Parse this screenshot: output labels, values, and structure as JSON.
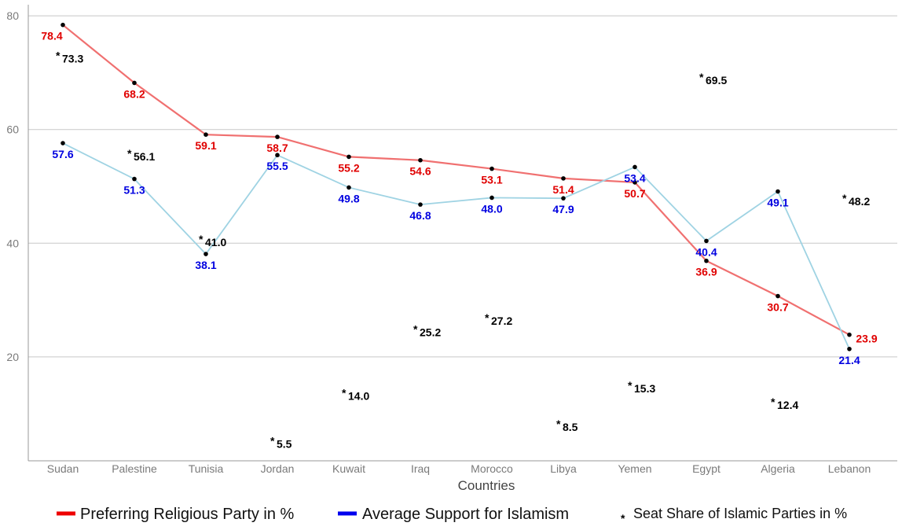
{
  "chart_data": {
    "type": "line",
    "xlabel": "Countries",
    "ylabel": "",
    "ylim": [
      0,
      80
    ],
    "yticks": [
      20,
      40,
      60,
      80
    ],
    "grid": "horizontal",
    "legend_position": "bottom",
    "categories": [
      "Sudan",
      "Palestine",
      "Tunisia",
      "Jordan",
      "Kuwait",
      "Iraq",
      "Morocco",
      "Libya",
      "Yemen",
      "Egypt",
      "Algeria",
      "Lebanon"
    ],
    "series": [
      {
        "name": "Preferring Religious Party in %",
        "kind": "line",
        "color": "#f07070",
        "label_color": "#e00000",
        "legend_color": "#ee0000",
        "values": [
          78.4,
          68.2,
          59.1,
          58.7,
          55.2,
          54.6,
          53.1,
          51.4,
          50.7,
          36.9,
          30.7,
          23.9
        ],
        "labels": [
          "78.4",
          "68.2",
          "59.1",
          "58.7",
          "55.2",
          "54.6",
          "53.1",
          "51.4",
          "50.7",
          "36.9",
          "30.7",
          "23.9"
        ]
      },
      {
        "name": "Average Support for Islamism",
        "kind": "line",
        "color": "#9fd3e3",
        "label_color": "#0000e0",
        "legend_color": "#0000ee",
        "values": [
          57.6,
          51.3,
          38.1,
          55.5,
          49.8,
          46.8,
          48.0,
          47.9,
          53.4,
          40.4,
          49.1,
          21.4
        ],
        "labels": [
          "57.6",
          "51.3",
          "38.1",
          "55.5",
          "49.8",
          "46.8",
          "48.0",
          "47.9",
          "53.4",
          "40.4",
          "49.1",
          "21.4"
        ]
      },
      {
        "name": "Seat Share of Islamic Parties in %",
        "kind": "scatter",
        "marker": "*",
        "color": "#000000",
        "label_color": "#000000",
        "legend_color": "#000000",
        "values": [
          73.3,
          56.1,
          41.0,
          5.5,
          14.0,
          25.2,
          27.2,
          8.5,
          15.3,
          69.5,
          12.4,
          48.2
        ],
        "labels": [
          "73.3",
          "56.1",
          "41.0",
          "5.5",
          "14.0",
          "25.2",
          "27.2",
          "8.5",
          "15.3",
          "69.5",
          "12.4",
          "48.2"
        ]
      }
    ]
  }
}
